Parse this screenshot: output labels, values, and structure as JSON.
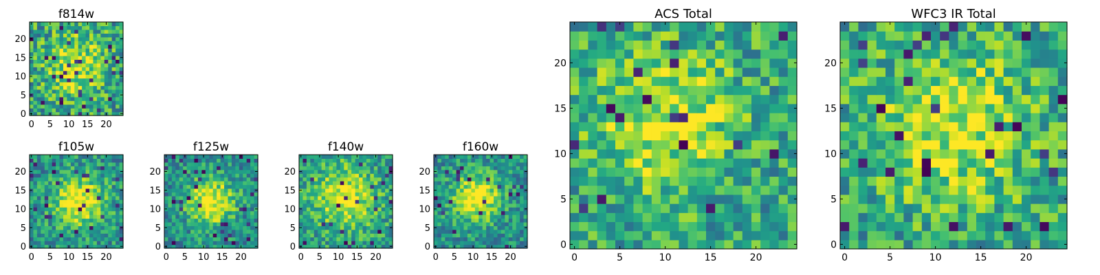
{
  "figure": {
    "description_free": true
  },
  "chart_data": [
    {
      "id": "f814w",
      "type": "heatmap",
      "title": "f814w",
      "size": 25,
      "seed": 814,
      "peak": [
        12,
        13
      ],
      "sigma": 5.5,
      "amp": 0.35,
      "noise": 0.55,
      "base": 0.58,
      "xticks": [
        0,
        5,
        10,
        15,
        20
      ],
      "yticks": [
        0,
        5,
        10,
        15,
        20
      ],
      "xlim": [
        0,
        24
      ],
      "ylim": [
        0,
        24
      ]
    },
    {
      "id": "f105w",
      "type": "heatmap",
      "title": "f105w",
      "size": 25,
      "seed": 105,
      "peak": [
        13,
        12
      ],
      "sigma": 5.0,
      "amp": 0.5,
      "noise": 0.45,
      "base": 0.5,
      "xticks": [
        0,
        5,
        10,
        15,
        20
      ],
      "yticks": [
        0,
        5,
        10,
        15,
        20
      ],
      "xlim": [
        0,
        24
      ],
      "ylim": [
        0,
        24
      ]
    },
    {
      "id": "f125w",
      "type": "heatmap",
      "title": "f125w",
      "size": 25,
      "seed": 125,
      "peak": [
        12,
        12
      ],
      "sigma": 4.5,
      "amp": 0.55,
      "noise": 0.45,
      "base": 0.48,
      "xticks": [
        0,
        5,
        10,
        15,
        20
      ],
      "yticks": [
        0,
        5,
        10,
        15,
        20
      ],
      "xlim": [
        0,
        24
      ],
      "ylim": [
        0,
        24
      ]
    },
    {
      "id": "f140w",
      "type": "heatmap",
      "title": "f140w",
      "size": 25,
      "seed": 140,
      "peak": [
        12,
        13
      ],
      "sigma": 5.5,
      "amp": 0.45,
      "noise": 0.45,
      "base": 0.55,
      "xticks": [
        0,
        5,
        10,
        15,
        20
      ],
      "yticks": [
        0,
        5,
        10,
        15,
        20
      ],
      "xlim": [
        0,
        24
      ],
      "ylim": [
        0,
        24
      ]
    },
    {
      "id": "f160w",
      "type": "heatmap",
      "title": "f160w",
      "size": 25,
      "seed": 160,
      "peak": [
        11,
        13
      ],
      "sigma": 4.5,
      "amp": 0.55,
      "noise": 0.42,
      "base": 0.5,
      "xticks": [
        0,
        5,
        10,
        15,
        20
      ],
      "yticks": [
        0,
        5,
        10,
        15,
        20
      ],
      "xlim": [
        0,
        24
      ],
      "ylim": [
        0,
        24
      ]
    },
    {
      "id": "acs-total",
      "type": "heatmap",
      "title": "ACS Total",
      "size": 25,
      "seed": 999,
      "peak": [
        10,
        14
      ],
      "sigma": 5.5,
      "amp": 0.35,
      "noise": 0.5,
      "base": 0.58,
      "xticks": [
        0,
        5,
        10,
        15,
        20
      ],
      "yticks": [
        0,
        5,
        10,
        15,
        20
      ],
      "xlim": [
        0,
        24
      ],
      "ylim": [
        0,
        24
      ]
    },
    {
      "id": "wfc3-ir-total",
      "type": "heatmap",
      "title": "WFC3 IR Total",
      "size": 25,
      "seed": 333,
      "peak": [
        12,
        13
      ],
      "sigma": 6.0,
      "amp": 0.35,
      "noise": 0.5,
      "base": 0.58,
      "xticks": [
        0,
        5,
        10,
        15,
        20
      ],
      "yticks": [
        0,
        5,
        10,
        15,
        20
      ],
      "xlim": [
        0,
        24
      ],
      "ylim": [
        0,
        24
      ]
    }
  ]
}
